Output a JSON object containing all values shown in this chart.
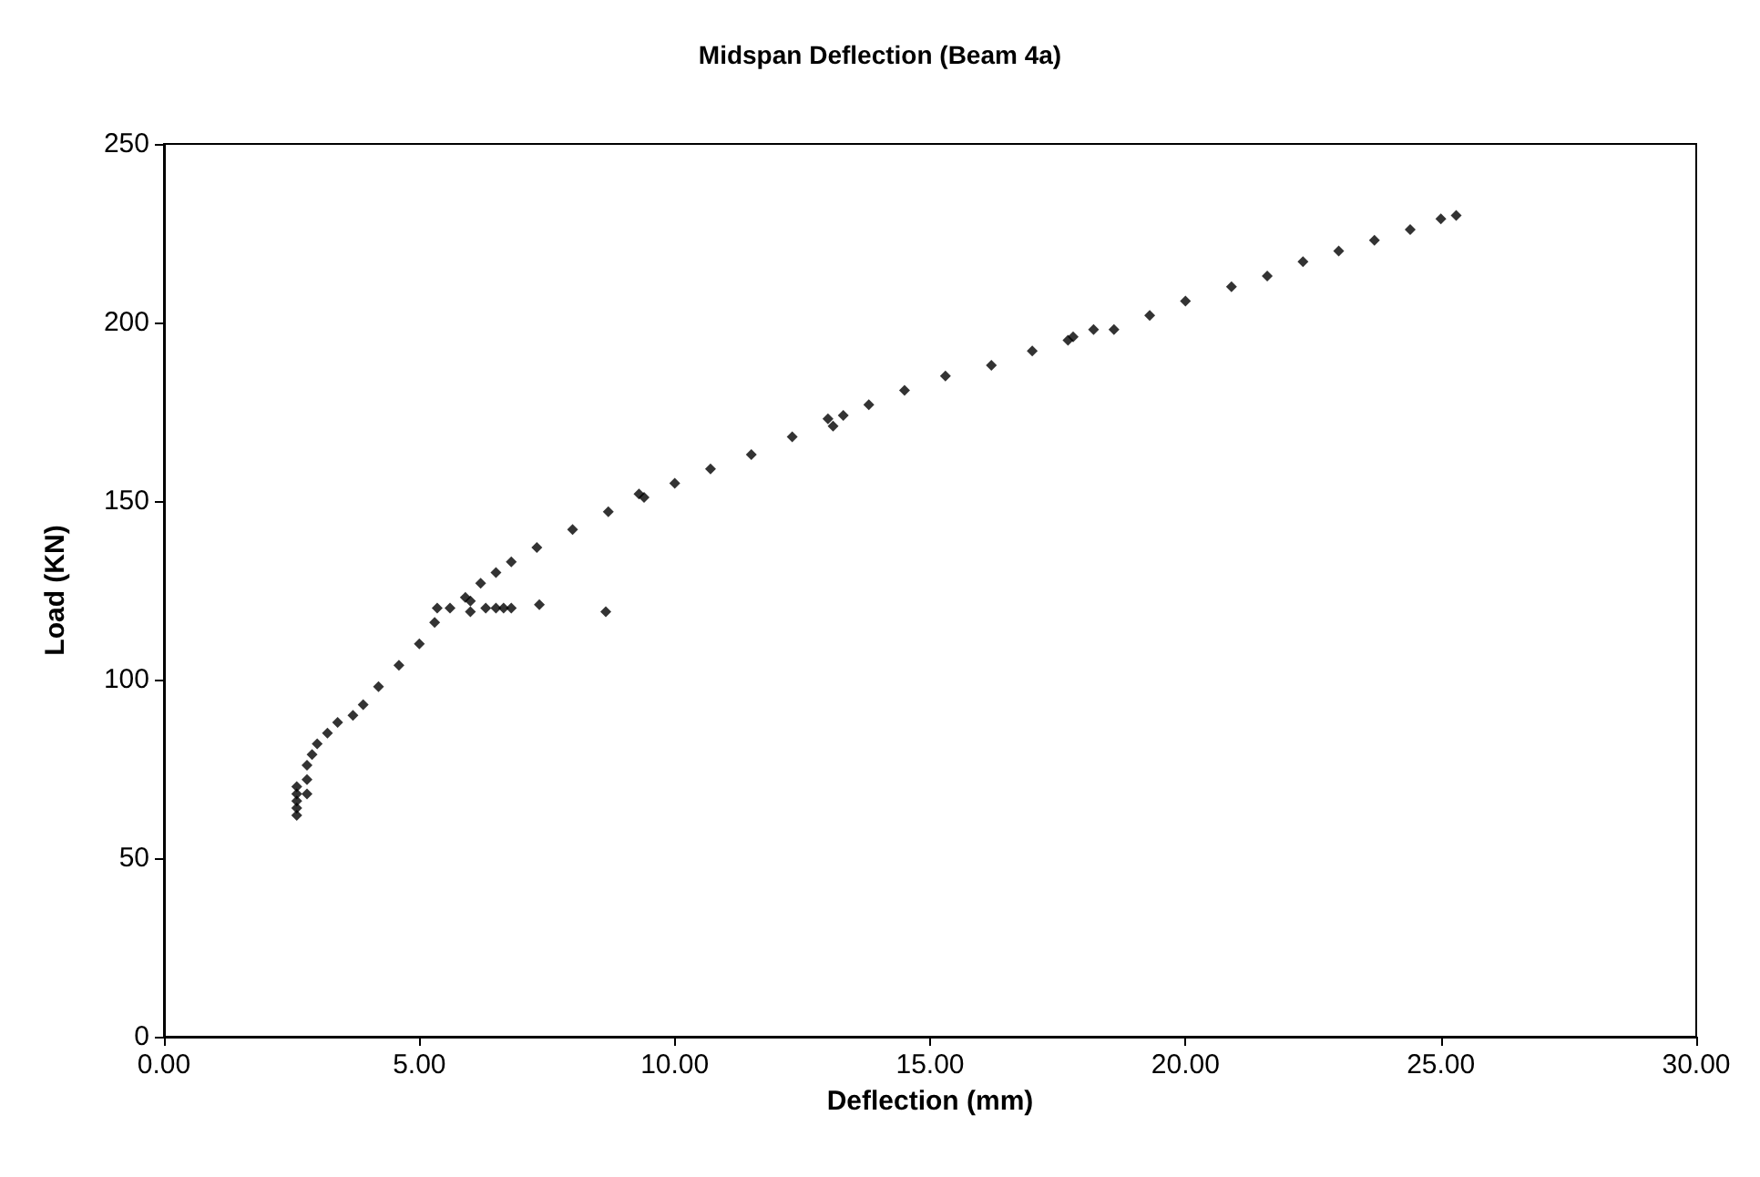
{
  "chart_data": {
    "type": "scatter",
    "title": "Midspan Deflection (Beam 4a)",
    "xlabel": "Deflection (mm)",
    "ylabel": "Load (KN)",
    "marker": "diamond",
    "grid": false,
    "xlim": [
      0,
      30
    ],
    "xticks": [
      {
        "value": 0,
        "label": "0.00"
      },
      {
        "value": 5,
        "label": "5.00"
      },
      {
        "value": 10,
        "label": "10.00"
      },
      {
        "value": 15,
        "label": "15.00"
      },
      {
        "value": 20,
        "label": "20.00"
      },
      {
        "value": 25,
        "label": "25.00"
      },
      {
        "value": 30,
        "label": "30.00"
      }
    ],
    "ylim": [
      0,
      250
    ],
    "yticks": [
      0,
      50,
      100,
      150,
      200,
      250
    ],
    "series": [
      {
        "color": "#000000",
        "x": [
          2.6,
          2.6,
          2.6,
          2.6,
          2.6,
          2.8,
          2.8,
          2.8,
          2.9,
          3.0,
          3.2,
          3.4,
          3.7,
          3.9,
          4.2,
          4.6,
          5.0,
          5.3,
          5.6,
          5.9,
          6.0,
          6.0,
          6.2,
          6.5,
          6.8,
          7.3,
          8.0,
          8.7,
          9.3,
          9.4,
          10.0,
          10.7,
          11.5,
          12.3,
          13.0,
          13.1,
          13.3,
          13.8,
          14.5,
          15.3,
          16.2,
          17.0,
          17.7,
          17.8,
          18.2,
          18.6,
          19.3,
          20.0,
          20.9,
          21.6,
          22.3,
          23.0,
          23.7,
          24.4,
          25.0,
          25.3,
          5.35,
          6.3,
          6.5,
          6.65,
          6.8,
          7.35,
          8.65
        ],
        "values": [
          62,
          64,
          66,
          68,
          70,
          68,
          72,
          76,
          79,
          82,
          85,
          88,
          90,
          93,
          98,
          104,
          110,
          116,
          120,
          123,
          119,
          122,
          127,
          130,
          133,
          137,
          142,
          147,
          152,
          151,
          155,
          159,
          163,
          168,
          173,
          171,
          174,
          177,
          181,
          185,
          188,
          192,
          195,
          196,
          198,
          198,
          202,
          206,
          210,
          213,
          217,
          220,
          223,
          226,
          229,
          230,
          120,
          120,
          120,
          120,
          120,
          121,
          119
        ]
      }
    ]
  }
}
